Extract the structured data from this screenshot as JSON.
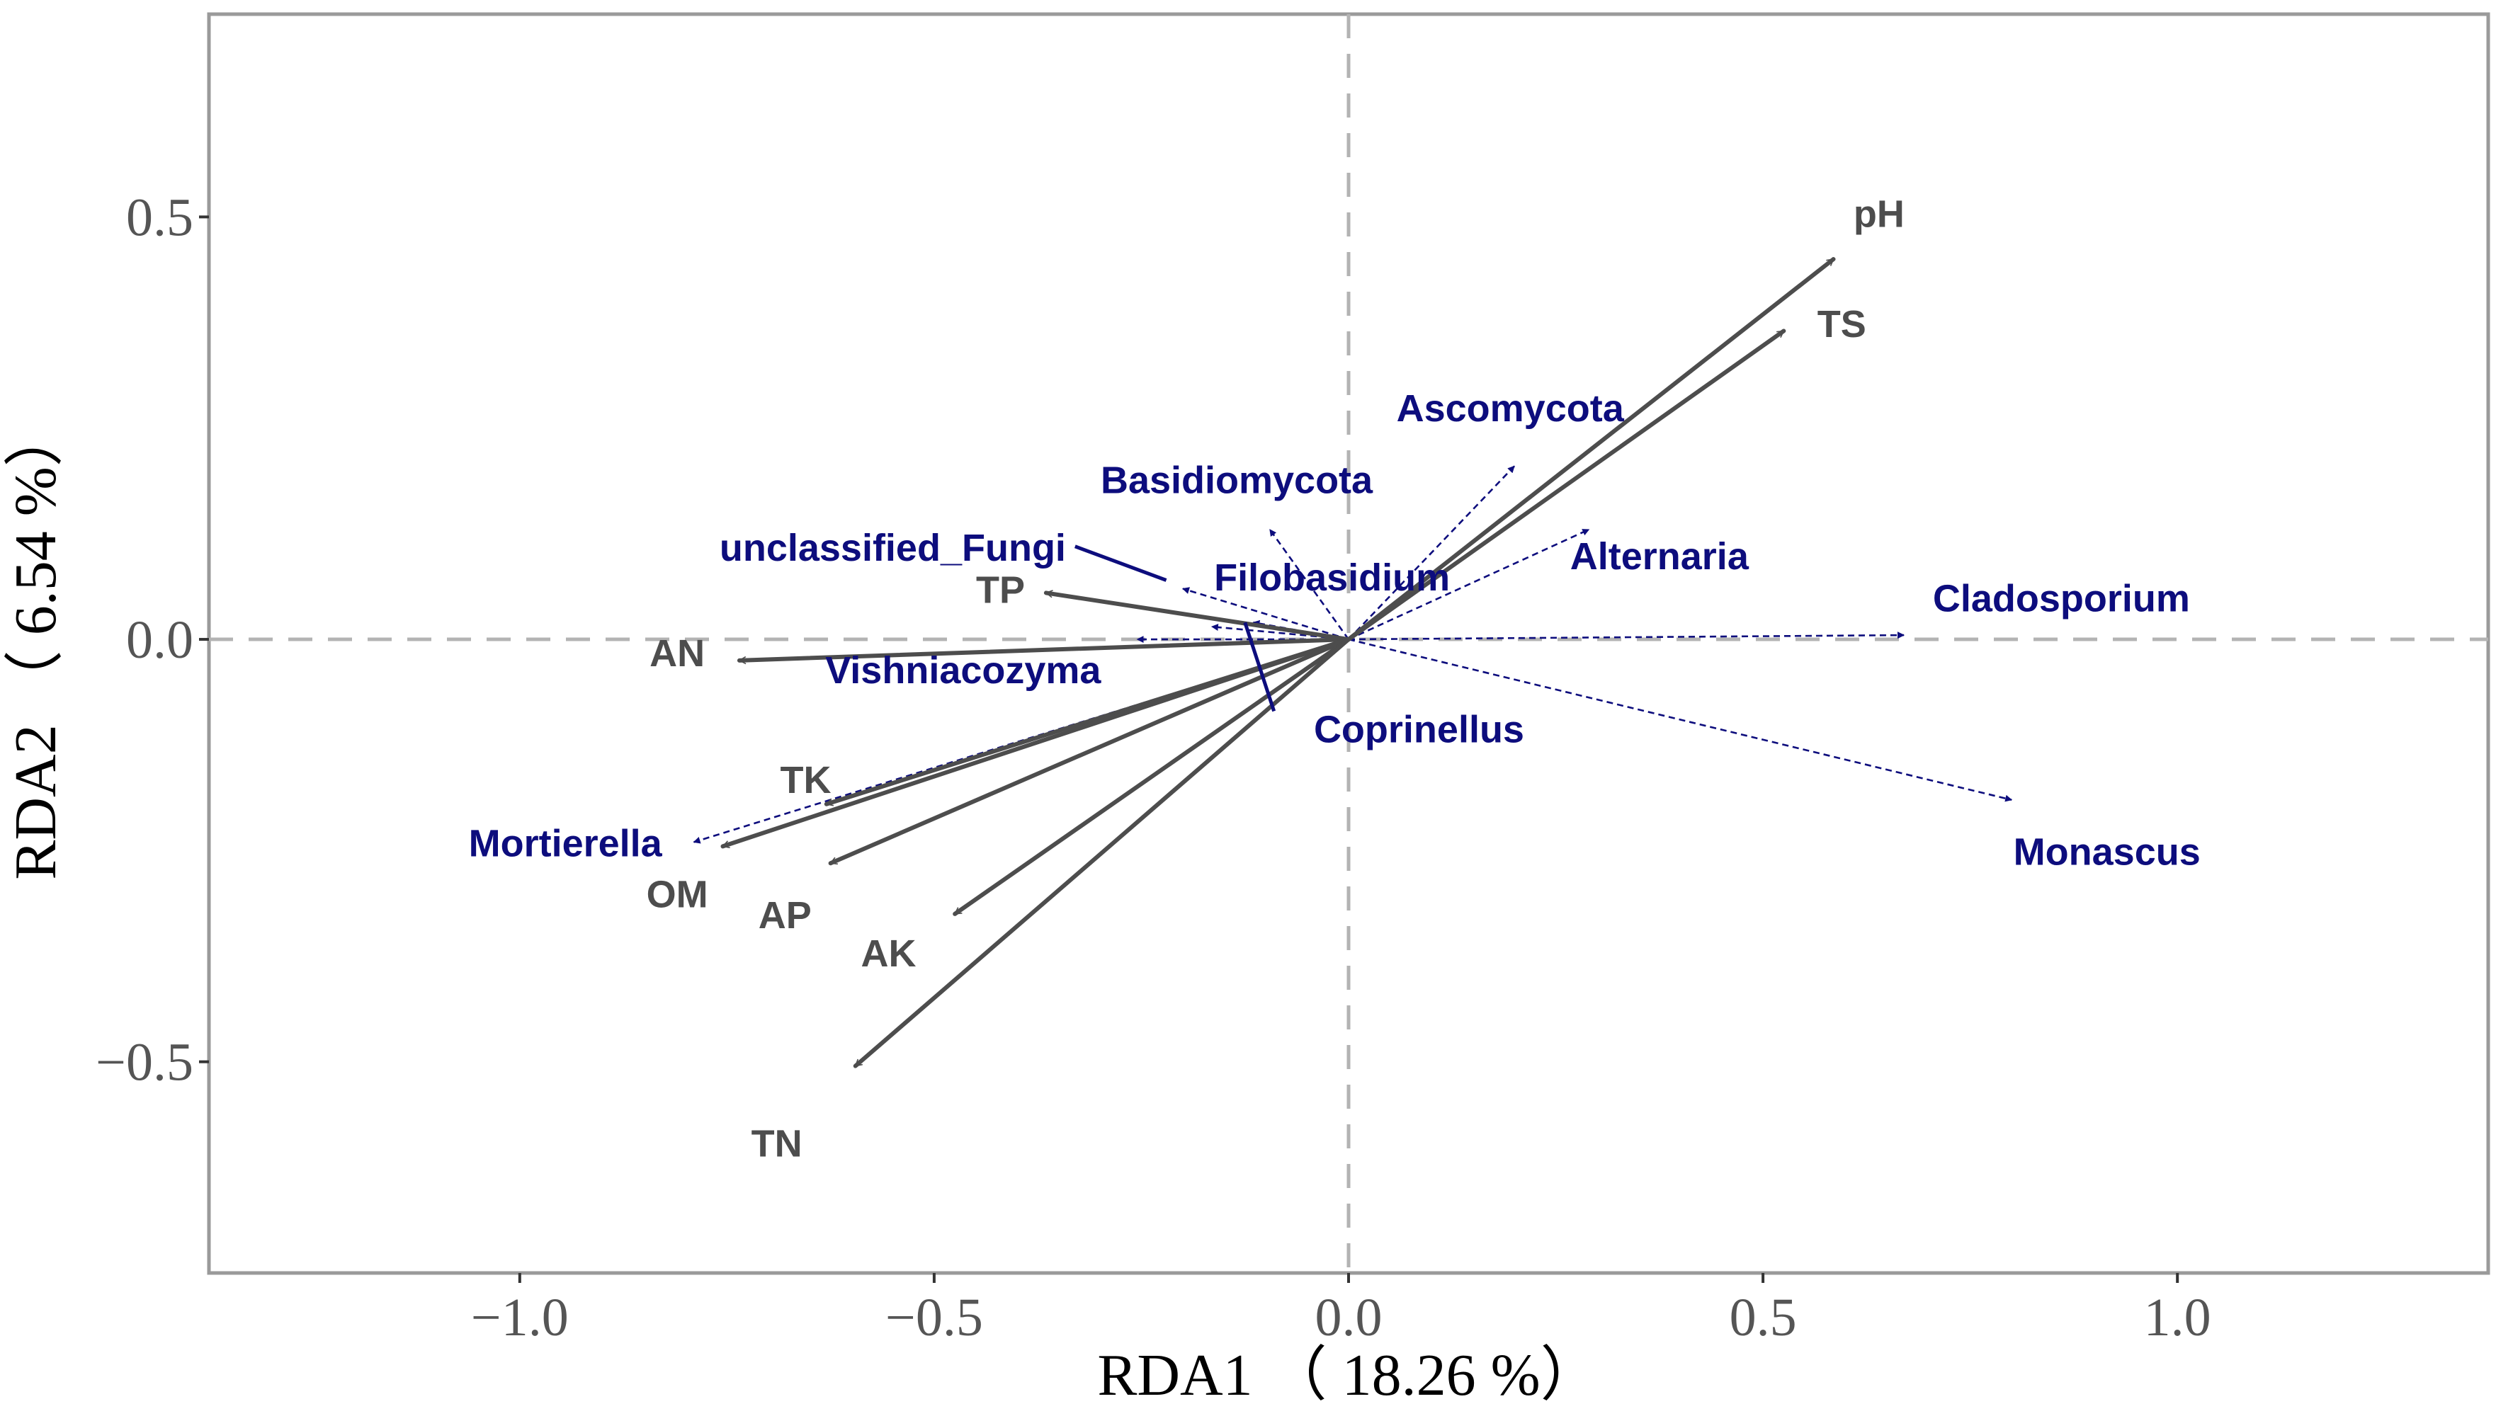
{
  "chart_data": {
    "type": "scatter",
    "subtype": "rda-biplot",
    "xlabel": "RDA1 （ 18.26 %）",
    "ylabel": "RDA2 （ 6.54 %）",
    "xlim": [
      -1.375,
      1.375
    ],
    "ylim": [
      -0.75,
      0.74
    ],
    "xticks": [
      -1.0,
      -0.5,
      0.0,
      0.5,
      1.0
    ],
    "xtick_labels": [
      "−1.0",
      "−0.5",
      "0.0",
      "0.5",
      "1.0"
    ],
    "yticks": [
      -0.5,
      0.0,
      0.5
    ],
    "ytick_labels": [
      "−0.5",
      "0.0",
      "0.5"
    ],
    "reference_lines": {
      "x": 0,
      "y": 0
    },
    "grid": false,
    "env_color": "#4d4d4d",
    "species_color": "#0d0d7d",
    "environmental_vectors": [
      {
        "name": "pH",
        "x": 0.585,
        "y": 0.45,
        "lx": 0.64,
        "ly": 0.5
      },
      {
        "name": "TS",
        "x": 0.525,
        "y": 0.365,
        "lx": 0.595,
        "ly": 0.37
      },
      {
        "name": "TP",
        "x": -0.365,
        "y": 0.055,
        "lx": -0.42,
        "ly": 0.055
      },
      {
        "name": "AN",
        "x": -0.735,
        "y": -0.025,
        "lx": -0.81,
        "ly": -0.02
      },
      {
        "name": "TK",
        "x": -0.63,
        "y": -0.195,
        "lx": -0.655,
        "ly": -0.17
      },
      {
        "name": "OM",
        "x": -0.755,
        "y": -0.245,
        "lx": -0.81,
        "ly": -0.305
      },
      {
        "name": "AP",
        "x": -0.625,
        "y": -0.265,
        "lx": -0.68,
        "ly": -0.33
      },
      {
        "name": "AK",
        "x": -0.475,
        "y": -0.325,
        "lx": -0.555,
        "ly": -0.375
      },
      {
        "name": "TN",
        "x": -0.595,
        "y": -0.505,
        "lx": -0.69,
        "ly": -0.6
      }
    ],
    "species_vectors": [
      {
        "name": "Ascomycota",
        "x": 0.2,
        "y": 0.205,
        "lx": 0.195,
        "ly": 0.27
      },
      {
        "name": "Basidiomycota",
        "x": -0.095,
        "y": 0.13,
        "lx": -0.135,
        "ly": 0.185
      },
      {
        "name": "unclassified_Fungi",
        "x": -0.165,
        "y": 0.015,
        "lx": -0.55,
        "ly": 0.105
      },
      {
        "name": "Filobasidium",
        "x": -0.2,
        "y": 0.06,
        "lx": -0.02,
        "ly": 0.07
      },
      {
        "name": "Alternaria",
        "x": 0.29,
        "y": 0.13,
        "lx": 0.375,
        "ly": 0.095
      },
      {
        "name": "Cladosporium",
        "x": 0.67,
        "y": 0.005,
        "lx": 0.86,
        "ly": 0.045
      },
      {
        "name": "Vishniacozyma",
        "x": -0.255,
        "y": 0.0,
        "lx": -0.465,
        "ly": -0.04
      },
      {
        "name": "Coprinellus",
        "x": -0.115,
        "y": 0.02,
        "lx": 0.085,
        "ly": -0.11
      },
      {
        "name": "Mortierella",
        "x": -0.79,
        "y": -0.24,
        "lx": -0.945,
        "ly": -0.245
      },
      {
        "name": "Monascus",
        "x": 0.8,
        "y": -0.19,
        "lx": 0.915,
        "ly": -0.255
      }
    ],
    "label_leaders": [
      {
        "from": [
          -0.33,
          0.11
        ],
        "to": [
          -0.22,
          0.07
        ]
      },
      {
        "from": [
          -0.09,
          -0.085
        ],
        "to": [
          -0.125,
          0.02
        ]
      }
    ]
  }
}
